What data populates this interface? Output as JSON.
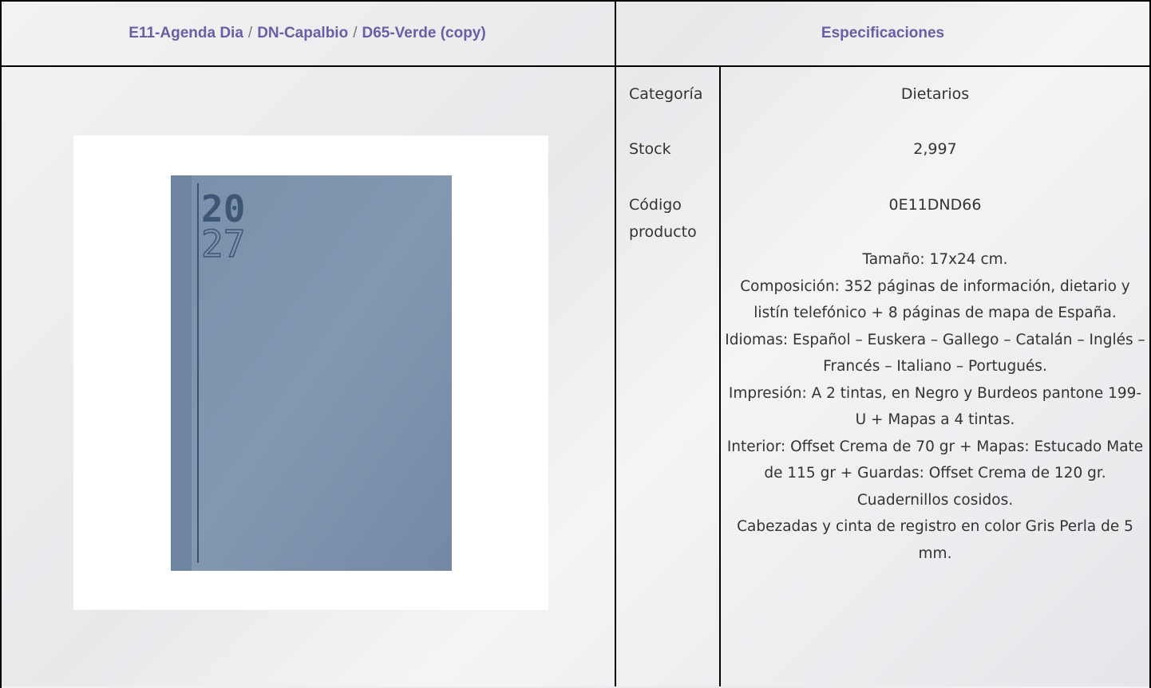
{
  "header": {
    "breadcrumb": [
      "E11-Agenda Dia",
      "DN-Capalbio",
      "D65-Verde (copy)"
    ],
    "separator": "/",
    "specs_title": "Especificaciones"
  },
  "image": {
    "cover_year_top": "20",
    "cover_year_bottom": "27"
  },
  "specs": {
    "rows": [
      [
        "Categoría",
        "Dietarios"
      ],
      [
        "Stock",
        "2,997"
      ],
      [
        "Código producto",
        "0E11DND66"
      ]
    ],
    "description": [
      "Tamaño: 17x24 cm.",
      "Composición: 352 páginas de información, dietario y listín telefónico + 8 páginas de mapa de España.",
      "Idiomas: Español – Euskera – Gallego – Catalán – Inglés – Francés – Italiano – Portugués.",
      "Impresión: A 2 tintas, en Negro y Burdeos pantone 199-U + Mapas a 4 tintas.",
      "Interior: Offset Crema de 70 gr + Mapas: Estucado Mate de 115 gr + Guardas: Offset Crema de 120 gr.",
      "Cuadernillos cosidos.",
      "Cabezadas y cinta de registro en color Gris Perla de 5 mm."
    ]
  }
}
